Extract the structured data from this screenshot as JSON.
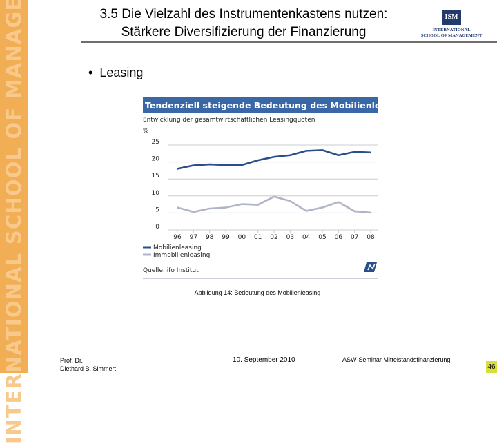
{
  "sidebar": {
    "text": "INTERNATIONAL SCHOOL OF MANAGEMENT"
  },
  "slide": {
    "title_line1": "3.5 Die Vielzahl des Instrumentenkastens nutzen:",
    "title_line2": "Stärkere Diversifizierung der Finanzierung",
    "bullet_text": "Leasing",
    "caption": "Abbildung 14: Bedeutung des Mobilienleasing"
  },
  "logo": {
    "mark": "ISM",
    "line1": "INTERNATIONAL",
    "line2": "SCHOOL OF MANAGEMENT"
  },
  "footer": {
    "author_line1": "Prof. Dr.",
    "author_line2": "Diethard B. Simmert",
    "date": "10. September 2010",
    "event": "ASW-Seminar Mittelstandsfinanzierung",
    "page": "46"
  },
  "colors": {
    "band": "#f2ae55",
    "header_blue": "#3a67a6",
    "mobilien": "#2a4f88",
    "immobilien": "#b0b4c8",
    "page_badge": "#d8de3a"
  },
  "chart_data": {
    "type": "line",
    "title": "Tendenziell steigende Bedeutung des Mobilienleasing",
    "subtitle": "Entwicklung der gesamtwirtschaftlichen Leasingquoten",
    "ylabel": "%",
    "categories": [
      "96",
      "97",
      "98",
      "99",
      "00",
      "01",
      "02",
      "03",
      "04",
      "05",
      "06",
      "07",
      "08"
    ],
    "yticks": [
      0,
      5,
      10,
      15,
      20,
      25
    ],
    "ylim": [
      0,
      25
    ],
    "series": [
      {
        "name": "Mobilienleasing",
        "color": "#2a4f88",
        "values": [
          18,
          19,
          19.3,
          19.1,
          19.1,
          20.5,
          21.5,
          22,
          23.3,
          23.5,
          22,
          23,
          22.8
        ]
      },
      {
        "name": "Immobilienleasing",
        "color": "#b0b4c8",
        "values": [
          6.6,
          5.3,
          6.3,
          6.6,
          7.6,
          7.4,
          9.8,
          8.5,
          5.6,
          6.6,
          8.2,
          5.5,
          5.1
        ]
      }
    ],
    "source": "Quelle: ifo Institut",
    "grid": "horizontal",
    "legend": "bottom-left"
  }
}
